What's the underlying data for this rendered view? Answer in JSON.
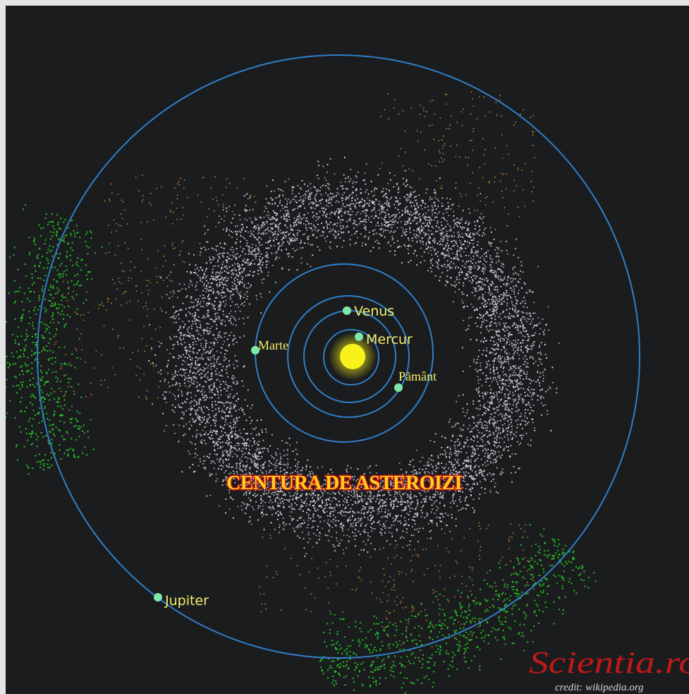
{
  "colors": {
    "background": "#1b1c1e",
    "orbit": "#2f7fc8",
    "sun": "#f7f21a",
    "planet": "#7ee8a8",
    "asteroid_main": "#d9d9e0",
    "asteroid_hilda": "#c7822d",
    "asteroid_trojan": "#26c626",
    "label_yellow": "#f3ef6a",
    "belt_label_fill": "#ffd21a",
    "belt_label_stroke": "#c0131a",
    "logo_red": "#c0181a"
  },
  "planets": {
    "mercury": {
      "label": "Mercur"
    },
    "venus": {
      "label": "Venus"
    },
    "earth": {
      "label": "Pământ"
    },
    "mars": {
      "label": "Marte"
    },
    "jupiter": {
      "label": "Jupiter"
    }
  },
  "belt_label": "CENTURA DE ASTEROIZI",
  "logo": {
    "text": "Scientia.ro",
    "credit": "credit: wikipedia.org"
  },
  "icons": {
    "sun": "sun-icon",
    "logo": "scientia-logo-icon"
  }
}
